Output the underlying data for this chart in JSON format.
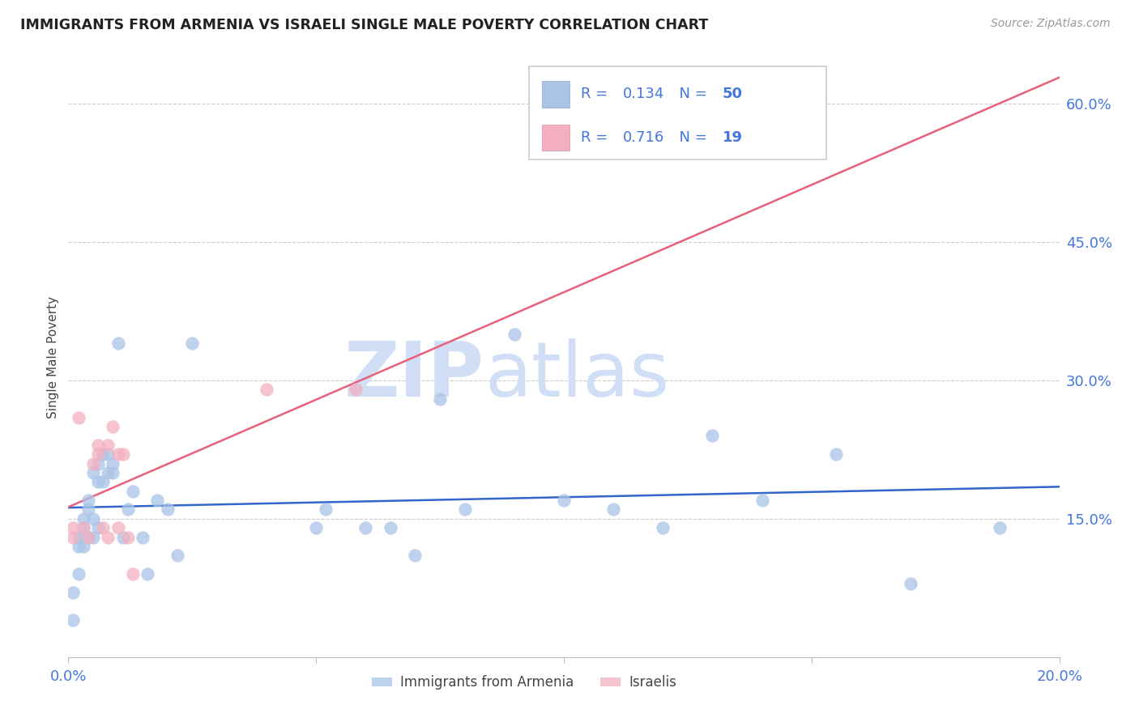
{
  "title": "IMMIGRANTS FROM ARMENIA VS ISRAELI SINGLE MALE POVERTY CORRELATION CHART",
  "source": "Source: ZipAtlas.com",
  "ylabel": "Single Male Poverty",
  "xlim": [
    0.0,
    0.2
  ],
  "ylim": [
    0.0,
    0.65
  ],
  "xticks": [
    0.0,
    0.05,
    0.1,
    0.15,
    0.2
  ],
  "xtick_labels": [
    "0.0%",
    "",
    "",
    "",
    "20.0%"
  ],
  "ytick_positions": [
    0.15,
    0.3,
    0.45,
    0.6
  ],
  "ytick_labels": [
    "15.0%",
    "30.0%",
    "45.0%",
    "60.0%"
  ],
  "legend_labels": [
    "Immigrants from Armenia",
    "Israelis"
  ],
  "r_armenia": "0.134",
  "n_armenia": "50",
  "r_israelis": "0.716",
  "n_israelis": "19",
  "color_armenia": "#aac4e8",
  "color_israelis": "#f4b0c0",
  "line_color_armenia": "#3366cc",
  "line_color_israelis": "#e8607a",
  "watermark_zip": "ZIP",
  "watermark_atlas": "atlas",
  "watermark_color": "#d0dff5",
  "text_color_blue": "#4477dd",
  "armenia_x": [
    0.001,
    0.001,
    0.002,
    0.002,
    0.002,
    0.003,
    0.003,
    0.003,
    0.003,
    0.004,
    0.004,
    0.004,
    0.005,
    0.005,
    0.005,
    0.006,
    0.006,
    0.006,
    0.007,
    0.007,
    0.008,
    0.008,
    0.009,
    0.009,
    0.01,
    0.011,
    0.012,
    0.013,
    0.015,
    0.016,
    0.018,
    0.02,
    0.022,
    0.025,
    0.05,
    0.052,
    0.06,
    0.065,
    0.07,
    0.075,
    0.08,
    0.09,
    0.1,
    0.11,
    0.12,
    0.13,
    0.14,
    0.155,
    0.17,
    0.188
  ],
  "armenia_y": [
    0.04,
    0.07,
    0.09,
    0.12,
    0.13,
    0.12,
    0.13,
    0.14,
    0.15,
    0.13,
    0.16,
    0.17,
    0.13,
    0.15,
    0.2,
    0.14,
    0.19,
    0.21,
    0.22,
    0.19,
    0.22,
    0.2,
    0.2,
    0.21,
    0.34,
    0.13,
    0.16,
    0.18,
    0.13,
    0.09,
    0.17,
    0.16,
    0.11,
    0.34,
    0.14,
    0.16,
    0.14,
    0.14,
    0.11,
    0.28,
    0.16,
    0.35,
    0.17,
    0.16,
    0.14,
    0.24,
    0.17,
    0.22,
    0.08,
    0.14
  ],
  "israelis_x": [
    0.001,
    0.001,
    0.002,
    0.003,
    0.004,
    0.005,
    0.006,
    0.006,
    0.007,
    0.008,
    0.008,
    0.009,
    0.01,
    0.01,
    0.011,
    0.012,
    0.013,
    0.04,
    0.058
  ],
  "israelis_y": [
    0.13,
    0.14,
    0.26,
    0.14,
    0.13,
    0.21,
    0.22,
    0.23,
    0.14,
    0.13,
    0.23,
    0.25,
    0.22,
    0.14,
    0.22,
    0.13,
    0.09,
    0.29,
    0.29
  ]
}
